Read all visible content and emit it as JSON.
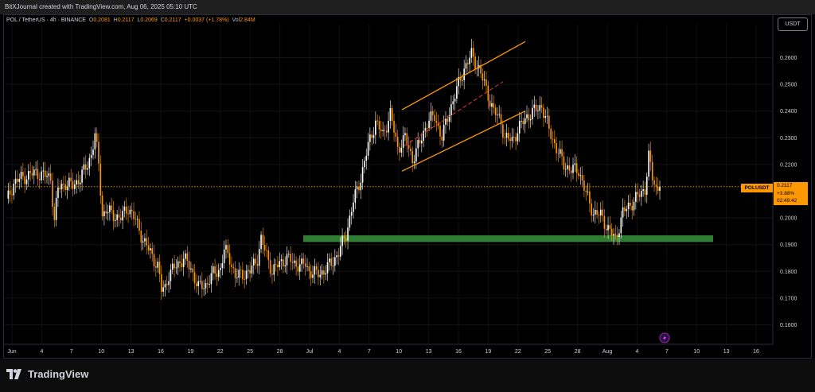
{
  "header": {
    "caption": "BitXJournal created with TradingView.com, Aug 06, 2025 05:10 UTC"
  },
  "legend": {
    "symbol": "POL / TetherUS · 4h · BINANCE",
    "open_label": "O",
    "open": "0.2081",
    "high_label": "H",
    "high": "0.2117",
    "low_label": "L",
    "low": "0.2069",
    "close_label": "C",
    "close": "0.2117",
    "change": "+0.0037 (+1.78%)",
    "vol_label": "Vol",
    "vol": "2.84M"
  },
  "price_axis": {
    "unit": "USDT"
  },
  "price_tag": {
    "symbol": "POLUSDT",
    "price": "0.2117",
    "change": "+3.88%",
    "countdown": "02:49:42"
  },
  "brand": {
    "name": "TradingView"
  },
  "colors": {
    "up": "#ffffff",
    "down": "#ff9800",
    "zone": "#2e7d32",
    "channel": "#ff9800",
    "grid": "#1a1a1a"
  },
  "chart_data": {
    "type": "candlestick",
    "y_ticks": [
      "0.2600",
      "0.2500",
      "0.2400",
      "0.2300",
      "0.2200",
      "0.2000",
      "0.1900",
      "0.1800",
      "0.1700",
      "0.1600"
    ],
    "y_range": [
      0.153,
      0.276
    ],
    "x_ticks": [
      "Jun",
      "4",
      "7",
      "10",
      "13",
      "16",
      "19",
      "22",
      "25",
      "28",
      "Jul",
      "4",
      "7",
      "10",
      "13",
      "16",
      "19",
      "22",
      "25",
      "28",
      "Aug",
      "4",
      "7",
      "10",
      "13",
      "16"
    ],
    "current_price": 0.2117,
    "close_path": [
      [
        0,
        0.206
      ],
      [
        4,
        0.213
      ],
      [
        8,
        0.215
      ],
      [
        12,
        0.216
      ],
      [
        16,
        0.217
      ],
      [
        20,
        0.216
      ],
      [
        24,
        0.215
      ],
      [
        26,
        0.199
      ],
      [
        28,
        0.211
      ],
      [
        32,
        0.213
      ],
      [
        36,
        0.212
      ],
      [
        40,
        0.215
      ],
      [
        44,
        0.22
      ],
      [
        46,
        0.224
      ],
      [
        48,
        0.231
      ],
      [
        50,
        0.22
      ],
      [
        52,
        0.201
      ],
      [
        54,
        0.203
      ],
      [
        58,
        0.201
      ],
      [
        62,
        0.2
      ],
      [
        66,
        0.204
      ],
      [
        70,
        0.199
      ],
      [
        74,
        0.192
      ],
      [
        78,
        0.187
      ],
      [
        82,
        0.182
      ],
      [
        84,
        0.173
      ],
      [
        86,
        0.174
      ],
      [
        88,
        0.179
      ],
      [
        92,
        0.182
      ],
      [
        96,
        0.185
      ],
      [
        100,
        0.181
      ],
      [
        104,
        0.174
      ],
      [
        108,
        0.175
      ],
      [
        112,
        0.179
      ],
      [
        116,
        0.181
      ],
      [
        118,
        0.188
      ],
      [
        121,
        0.185
      ],
      [
        124,
        0.178
      ],
      [
        128,
        0.179
      ],
      [
        132,
        0.18
      ],
      [
        136,
        0.185
      ],
      [
        138,
        0.192
      ],
      [
        141,
        0.186
      ],
      [
        144,
        0.18
      ],
      [
        148,
        0.183
      ],
      [
        152,
        0.185
      ],
      [
        156,
        0.183
      ],
      [
        160,
        0.182
      ],
      [
        162,
        0.183
      ],
      [
        164,
        0.18
      ],
      [
        168,
        0.179
      ],
      [
        172,
        0.18
      ],
      [
        176,
        0.183
      ],
      [
        180,
        0.187
      ],
      [
        184,
        0.194
      ],
      [
        188,
        0.206
      ],
      [
        192,
        0.215
      ],
      [
        196,
        0.227
      ],
      [
        200,
        0.236
      ],
      [
        204,
        0.231
      ],
      [
        208,
        0.239
      ],
      [
        212,
        0.226
      ],
      [
        216,
        0.23
      ],
      [
        220,
        0.222
      ],
      [
        224,
        0.228
      ],
      [
        228,
        0.236
      ],
      [
        232,
        0.238
      ],
      [
        236,
        0.23
      ],
      [
        240,
        0.24
      ],
      [
        244,
        0.248
      ],
      [
        248,
        0.256
      ],
      [
        252,
        0.261
      ],
      [
        256,
        0.256
      ],
      [
        260,
        0.248
      ],
      [
        264,
        0.24
      ],
      [
        268,
        0.236
      ],
      [
        270,
        0.23
      ],
      [
        274,
        0.229
      ],
      [
        278,
        0.234
      ],
      [
        282,
        0.238
      ],
      [
        286,
        0.24
      ],
      [
        290,
        0.242
      ],
      [
        294,
        0.233
      ],
      [
        298,
        0.226
      ],
      [
        302,
        0.22
      ],
      [
        306,
        0.218
      ],
      [
        310,
        0.218
      ],
      [
        314,
        0.209
      ],
      [
        318,
        0.202
      ],
      [
        322,
        0.201
      ],
      [
        326,
        0.196
      ],
      [
        330,
        0.192
      ],
      [
        334,
        0.202
      ],
      [
        338,
        0.205
      ],
      [
        342,
        0.208
      ],
      [
        346,
        0.211
      ],
      [
        348,
        0.223
      ],
      [
        350,
        0.215
      ],
      [
        352,
        0.211
      ],
      [
        354,
        0.2117
      ]
    ],
    "demand_zone": {
      "low": 0.191,
      "high": 0.1935,
      "color": "#2e7d32"
    },
    "channel": {
      "upper": [
        [
          0.2405,
          0.266
        ]
      ],
      "lower": [
        [
          0.2175,
          0.24
        ]
      ]
    }
  }
}
